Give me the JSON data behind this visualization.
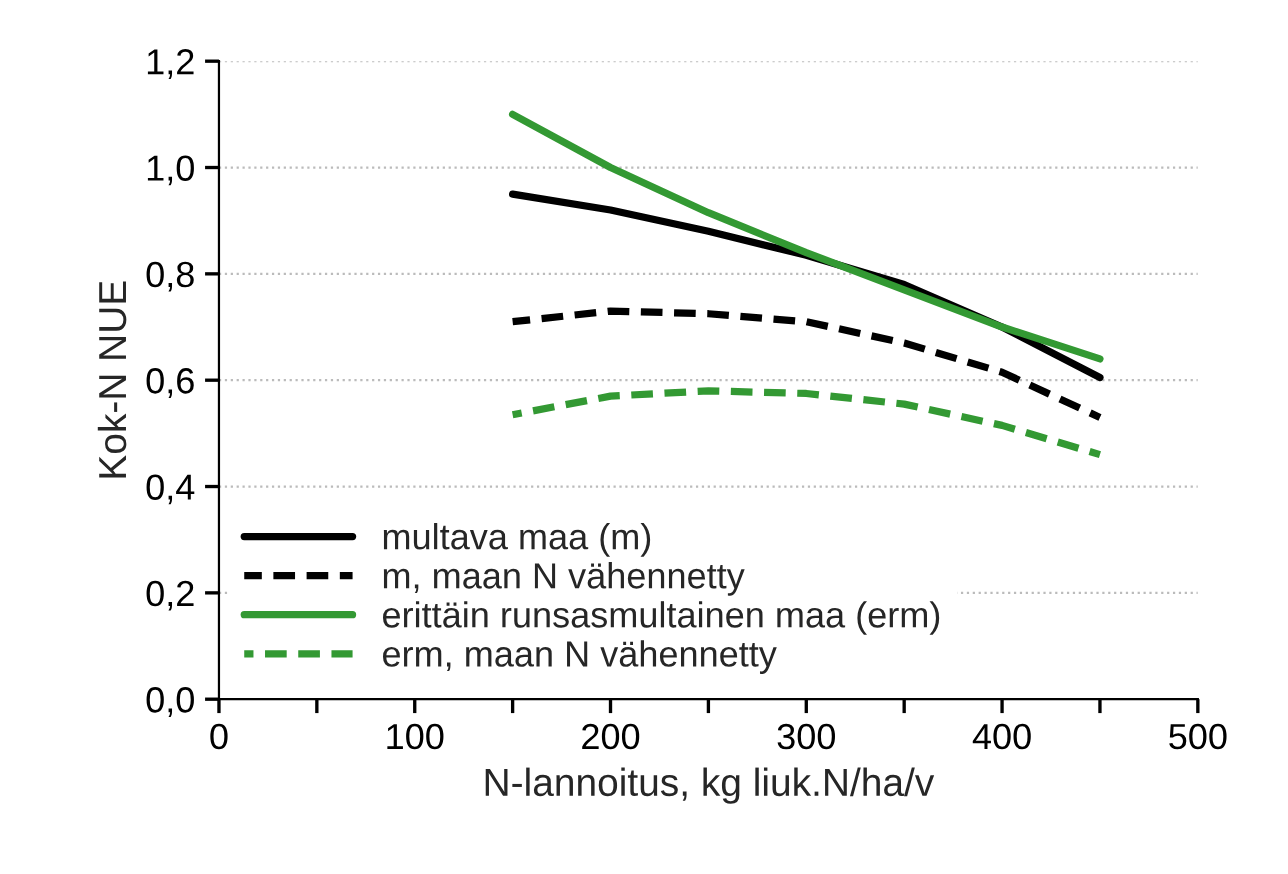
{
  "chart_data": {
    "type": "line",
    "xlabel": "N-lannoitus, kg liuk.N/ha/v",
    "ylabel": "Kok-N NUE",
    "x": [
      150,
      200,
      250,
      300,
      350,
      400,
      450
    ],
    "series": [
      {
        "name": "multava maa (m)",
        "color": "#000000",
        "line_style": "solid",
        "values": [
          0.95,
          0.92,
          0.88,
          0.835,
          0.78,
          0.7,
          0.605
        ]
      },
      {
        "name": "m, maan N vähennetty",
        "color": "#000000",
        "line_style": "dashed",
        "values": [
          0.71,
          0.73,
          0.725,
          0.71,
          0.67,
          0.615,
          0.53
        ]
      },
      {
        "name": "erittäin runsasmultainen maa (erm)",
        "color": "#339933",
        "line_style": "solid",
        "values": [
          1.1,
          1.0,
          0.915,
          0.84,
          0.77,
          0.7,
          0.64
        ]
      },
      {
        "name": "erm, maan N vähennetty",
        "color": "#339933",
        "line_style": "dashed",
        "values": [
          0.535,
          0.57,
          0.58,
          0.575,
          0.555,
          0.515,
          0.46
        ]
      }
    ],
    "xlim": [
      0,
      500
    ],
    "ylim": [
      0,
      1.2
    ],
    "xticks": [
      0,
      {
        "value": 50,
        "label": null
      },
      100,
      {
        "value": 150,
        "label": null
      },
      200,
      {
        "value": 250,
        "label": null
      },
      300,
      {
        "value": 350,
        "label": null
      },
      400,
      {
        "value": 450,
        "label": null
      },
      500
    ],
    "yticks": [
      {
        "value": 0,
        "label": "0,0"
      },
      {
        "value": 0.2,
        "label": "0,2"
      },
      {
        "value": 0.4,
        "label": "0,4"
      },
      {
        "value": 0.6,
        "label": "0,6"
      },
      {
        "value": 0.8,
        "label": "0,8"
      },
      {
        "value": 1.0,
        "label": "1,0"
      },
      {
        "value": 1.2,
        "label": "1,2"
      }
    ],
    "grid": "y",
    "legend": "bottom left",
    "marker": "none"
  }
}
